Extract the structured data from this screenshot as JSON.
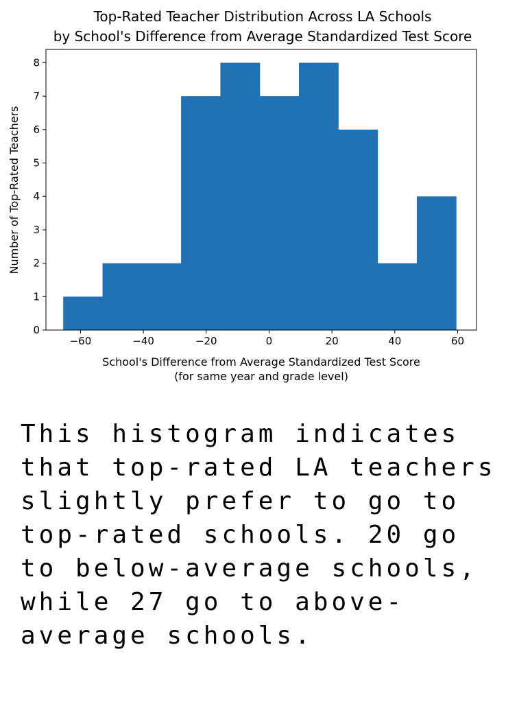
{
  "chart_data": {
    "type": "bar",
    "title_lines": [
      "Top-Rated Teacher Distribution Across LA Schools",
      "by School's Difference from Average Standardized Test Score"
    ],
    "xlabel_lines": [
      "School's Difference from Average Standardized Test Score",
      "(for same year and grade level)"
    ],
    "ylabel": "Number of Top-Rated Teachers",
    "xlim": [
      -71,
      66
    ],
    "ylim": [
      0,
      8.4
    ],
    "bins": [
      {
        "x0": -65.5,
        "x1": -53.0,
        "count": 1
      },
      {
        "x0": -53.0,
        "x1": -40.5,
        "count": 2
      },
      {
        "x0": -40.5,
        "x1": -28.0,
        "count": 2
      },
      {
        "x0": -28.0,
        "x1": -15.5,
        "count": 7
      },
      {
        "x0": -15.5,
        "x1": -3.0,
        "count": 8
      },
      {
        "x0": -3.0,
        "x1": 9.5,
        "count": 7
      },
      {
        "x0": 9.5,
        "x1": 22.0,
        "count": 8
      },
      {
        "x0": 22.0,
        "x1": 34.5,
        "count": 6
      },
      {
        "x0": 34.5,
        "x1": 47.0,
        "count": 2
      },
      {
        "x0": 47.0,
        "x1": 59.5,
        "count": 4
      }
    ],
    "xticks": [
      -60,
      -40,
      -20,
      0,
      20,
      40,
      60
    ],
    "xtick_labels": [
      "−60",
      "−40",
      "−20",
      "0",
      "20",
      "40",
      "60"
    ],
    "yticks": [
      0,
      1,
      2,
      3,
      4,
      5,
      6,
      7,
      8
    ],
    "ytick_labels": [
      "0",
      "1",
      "2",
      "3",
      "4",
      "5",
      "6",
      "7",
      "8"
    ],
    "bar_color": "#2171b5",
    "grid": false
  },
  "caption": "This histogram indicates that top-rated LA teachers slightly prefer to go to top-rated schools. 20 go to below-average schools, while 27 go to above-average schools."
}
